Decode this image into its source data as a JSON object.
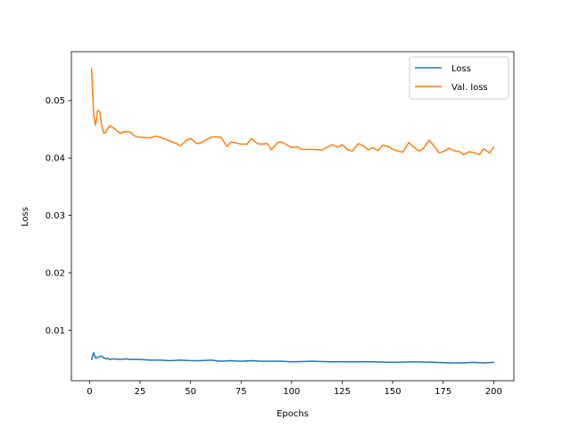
{
  "chart_data": {
    "type": "line",
    "xlabel": "Epochs",
    "ylabel": "Loss",
    "xlim": [
      -9,
      210
    ],
    "ylim": [
      0.0012,
      0.0585
    ],
    "xticks": [
      0,
      25,
      50,
      75,
      100,
      125,
      150,
      175,
      200
    ],
    "xtick_labels": [
      "0",
      "25",
      "50",
      "75",
      "100",
      "125",
      "150",
      "175",
      "200"
    ],
    "yticks": [
      0.01,
      0.02,
      0.03,
      0.04,
      0.05
    ],
    "ytick_labels": [
      "0.01",
      "0.02",
      "0.03",
      "0.04",
      "0.05"
    ],
    "grid": false,
    "legend_position": "top-right",
    "series": [
      {
        "name": "Loss",
        "color": "#1f77b4",
        "x": [
          1,
          2,
          3,
          4,
          5,
          6,
          7,
          8,
          9,
          10,
          12,
          15,
          18,
          20,
          25,
          30,
          35,
          40,
          45,
          50,
          55,
          60,
          65,
          70,
          75,
          80,
          85,
          90,
          95,
          100,
          110,
          120,
          130,
          140,
          150,
          160,
          170,
          180,
          185,
          190,
          195,
          200
        ],
        "y": [
          0.0049,
          0.0061,
          0.0051,
          0.0053,
          0.0054,
          0.0055,
          0.0052,
          0.005,
          0.0051,
          0.0049,
          0.005,
          0.0049,
          0.005,
          0.0049,
          0.0049,
          0.0048,
          0.0048,
          0.0047,
          0.0048,
          0.0047,
          0.0047,
          0.0048,
          0.0046,
          0.0047,
          0.0046,
          0.0047,
          0.0046,
          0.0046,
          0.0046,
          0.0045,
          0.0046,
          0.0045,
          0.0045,
          0.0045,
          0.0044,
          0.0045,
          0.0044,
          0.0043,
          0.0043,
          0.0044,
          0.0043,
          0.0044
        ]
      },
      {
        "name": "Val. loss",
        "color": "#ff7f0e",
        "x": [
          1,
          2,
          3,
          4,
          5,
          6,
          7,
          8,
          9,
          10,
          12,
          15,
          18,
          20,
          23,
          25,
          30,
          33,
          35,
          40,
          43,
          45,
          48,
          50,
          53,
          55,
          60,
          62,
          65,
          68,
          70,
          75,
          78,
          80,
          83,
          85,
          88,
          90,
          93,
          95,
          98,
          100,
          103,
          105,
          110,
          115,
          120,
          123,
          125,
          128,
          130,
          133,
          135,
          138,
          140,
          143,
          145,
          148,
          150,
          153,
          155,
          158,
          160,
          163,
          165,
          168,
          170,
          173,
          175,
          178,
          180,
          183,
          185,
          188,
          190,
          193,
          195,
          198,
          200
        ],
        "y": [
          0.0556,
          0.0475,
          0.0457,
          0.0483,
          0.0481,
          0.0458,
          0.0443,
          0.0445,
          0.0451,
          0.0456,
          0.0452,
          0.0443,
          0.0446,
          0.0445,
          0.0437,
          0.0436,
          0.0435,
          0.0438,
          0.0436,
          0.0429,
          0.0425,
          0.0421,
          0.0431,
          0.0434,
          0.0425,
          0.0426,
          0.0436,
          0.0437,
          0.0436,
          0.042,
          0.0428,
          0.0424,
          0.0424,
          0.0434,
          0.0425,
          0.0424,
          0.0425,
          0.0414,
          0.0427,
          0.0428,
          0.0422,
          0.0418,
          0.0419,
          0.0415,
          0.0415,
          0.0414,
          0.0423,
          0.0419,
          0.0423,
          0.0414,
          0.0412,
          0.0425,
          0.0422,
          0.0414,
          0.0418,
          0.0413,
          0.0422,
          0.042,
          0.0415,
          0.0412,
          0.041,
          0.0427,
          0.042,
          0.0412,
          0.0416,
          0.0431,
          0.0423,
          0.0409,
          0.0411,
          0.0417,
          0.0413,
          0.0411,
          0.0406,
          0.0411,
          0.0409,
          0.0406,
          0.0416,
          0.0409,
          0.0419
        ]
      }
    ]
  }
}
